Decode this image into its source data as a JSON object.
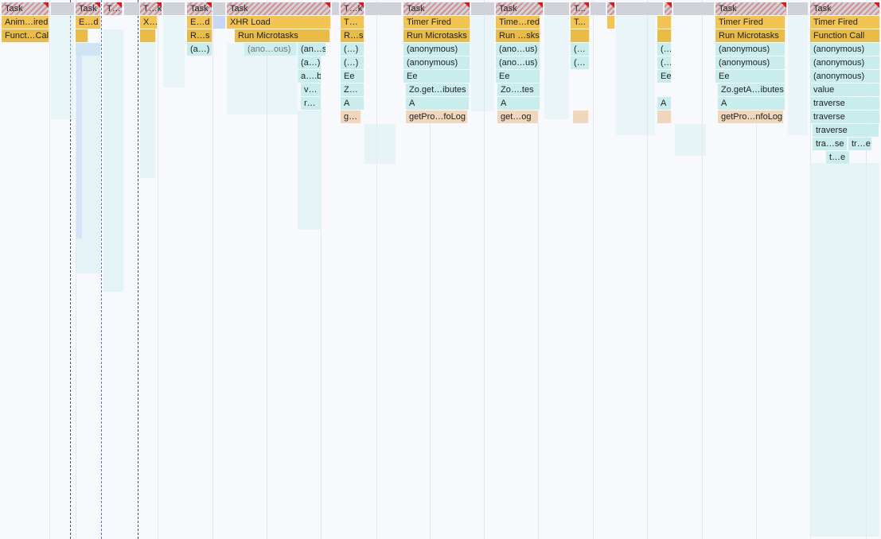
{
  "colors": {
    "task": "#cfd3d9",
    "long_task_hatch": "#d98c8c",
    "long_task_flag": "#e0161b",
    "event": "#f1c453",
    "script": "#c9ecec",
    "gc": "#efd6bd",
    "rendering": "#c8d6f8"
  },
  "labels": {
    "task": "Task",
    "t_ellipsis": "T…",
    "t_k": "T…k",
    "t_dot": "T...",
    "anim_fired": "Anim…ired",
    "funct_call": "Funct…Call",
    "e_d": "E…d",
    "x_ellipsis": "X…",
    "r_s": "R…s",
    "a_paren": "(a…)",
    "xhr_load": "XHR Load",
    "run_microtasks": "Run Microtasks",
    "ano_ous": "(ano…ous)",
    "an_s": "(an…s)",
    "a_b": "a….b",
    "v_ellipsis": "v…",
    "r_ellipsis": "r…",
    "paren_ellipsis": "(…)",
    "paren_ellipsis_short": "(…",
    "ee": "Ee",
    "z_ellipsis": "Z…",
    "a_letter": "A",
    "g_ellipsis": "g…",
    "timer_fired": "Timer Fired",
    "anonymous": "(anonymous)",
    "zo_get_ibutes": "Zo.get…ibutes",
    "get_pro_folog": "getPro…foLog",
    "time_red": "Time…red",
    "run_sks": "Run …sks",
    "ano_us": "(ano…us)",
    "zo_tes": "Zo….tes",
    "get_og": "get…og",
    "zo_geta_ibutes": "Zo.getA…ibutes",
    "get_pro_nfolog": "getPro…nfoLog",
    "function_call": "Function Call",
    "value": "value",
    "traverse": "traverse",
    "tra_se": "tra…se",
    "tr_e": "tr…e",
    "t_e": "t…e"
  }
}
